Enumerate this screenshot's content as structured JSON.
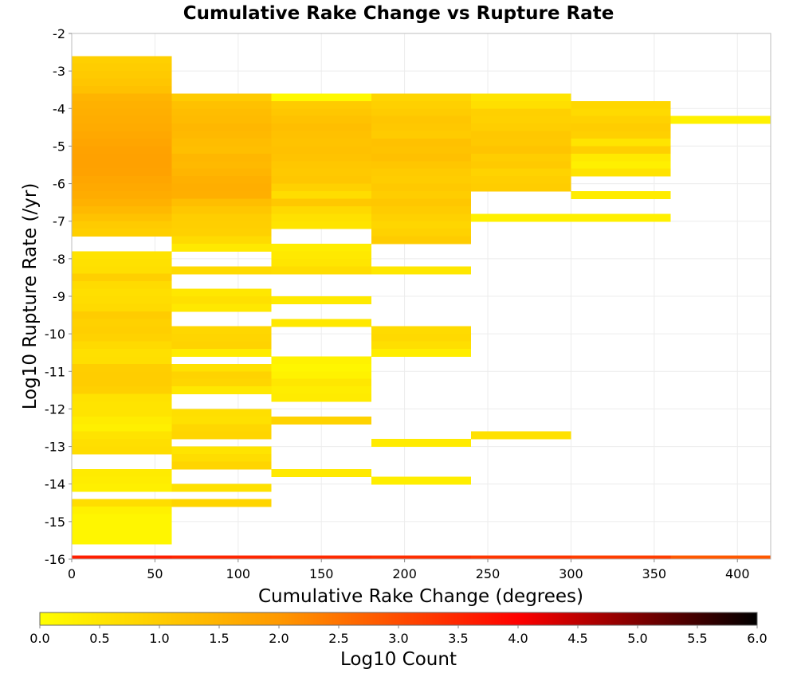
{
  "chart_data": {
    "type": "heatmap",
    "title": "Cumulative Rake Change vs Rupture Rate",
    "xlabel": "Cumulative Rake Change (degrees)",
    "ylabel": "Log10 Rupture Rate (/yr)",
    "xlim": [
      0,
      420
    ],
    "ylim": [
      -16,
      -2
    ],
    "x_ticks": [
      "0",
      "50",
      "100",
      "150",
      "200",
      "250",
      "300",
      "350",
      "400"
    ],
    "y_ticks": [
      "-2",
      "-3",
      "-4",
      "-5",
      "-6",
      "-7",
      "-8",
      "-9",
      "-10",
      "-11",
      "-12",
      "-13",
      "-14",
      "-15",
      "-16"
    ],
    "grid": true,
    "colorbar": {
      "label": "Log10 Count",
      "range": [
        0,
        6
      ],
      "ticks": [
        "0.0",
        "0.5",
        "1.0",
        "1.5",
        "2.0",
        "2.5",
        "3.0",
        "3.5",
        "4.0",
        "4.5",
        "5.0",
        "5.5",
        "6.0"
      ],
      "colormap": [
        "#ffff00",
        "#ff9900",
        "#ff0000",
        "#000000"
      ]
    },
    "x_bin_width": 60,
    "y_bin_height": 0.2,
    "columns": [
      {
        "x_start": 0,
        "cells": [
          [
            -2.7,
            0.92
          ],
          [
            -2.9,
            0.98
          ],
          [
            -3.1,
            1.04
          ],
          [
            -3.3,
            1.12
          ],
          [
            -3.5,
            1.22
          ],
          [
            -3.7,
            1.48
          ],
          [
            -3.9,
            1.52
          ],
          [
            -4.1,
            1.56
          ],
          [
            -4.3,
            1.6
          ],
          [
            -4.5,
            1.65
          ],
          [
            -4.7,
            1.7
          ],
          [
            -4.9,
            1.76
          ],
          [
            -5.1,
            1.82
          ],
          [
            -5.3,
            1.85
          ],
          [
            -5.5,
            1.85
          ],
          [
            -5.7,
            1.82
          ],
          [
            -5.9,
            1.74
          ],
          [
            -6.1,
            1.68
          ],
          [
            -6.3,
            1.62
          ],
          [
            -6.5,
            1.52
          ],
          [
            -6.7,
            1.38
          ],
          [
            -6.9,
            1.2
          ],
          [
            -7.1,
            1.02
          ],
          [
            -7.3,
            0.95
          ],
          [
            -7.9,
            0.55
          ],
          [
            -8.1,
            0.58
          ],
          [
            -8.3,
            0.62
          ],
          [
            -8.5,
            0.95
          ],
          [
            -8.7,
            0.7
          ],
          [
            -8.9,
            0.62
          ],
          [
            -9.1,
            0.66
          ],
          [
            -9.3,
            0.72
          ],
          [
            -9.5,
            1.0
          ],
          [
            -9.7,
            0.9
          ],
          [
            -9.9,
            0.95
          ],
          [
            -10.1,
            0.88
          ],
          [
            -10.3,
            0.72
          ],
          [
            -10.5,
            0.6
          ],
          [
            -10.7,
            0.62
          ],
          [
            -10.9,
            0.96
          ],
          [
            -11.1,
            0.98
          ],
          [
            -11.3,
            0.98
          ],
          [
            -11.5,
            0.92
          ],
          [
            -11.7,
            0.56
          ],
          [
            -11.9,
            0.52
          ],
          [
            -12.1,
            0.52
          ],
          [
            -12.3,
            0.38
          ],
          [
            -12.5,
            0.3
          ],
          [
            -12.7,
            0.55
          ],
          [
            -12.9,
            0.62
          ],
          [
            -13.1,
            0.66
          ],
          [
            -13.7,
            0.4
          ],
          [
            -13.9,
            0.36
          ],
          [
            -14.1,
            0.3
          ],
          [
            -14.5,
            0.66
          ],
          [
            -14.7,
            0.28
          ],
          [
            -14.9,
            0.18
          ],
          [
            -15.1,
            0.18
          ],
          [
            -15.3,
            0.18
          ],
          [
            -15.5,
            0.18
          ]
        ]
      },
      {
        "x_start": 60,
        "cells": [
          [
            -3.7,
            1.02
          ],
          [
            -3.9,
            1.22
          ],
          [
            -4.1,
            1.3
          ],
          [
            -4.3,
            1.34
          ],
          [
            -4.5,
            1.42
          ],
          [
            -4.7,
            1.38
          ],
          [
            -4.9,
            1.3
          ],
          [
            -5.1,
            1.26
          ],
          [
            -5.3,
            1.42
          ],
          [
            -5.5,
            1.38
          ],
          [
            -5.7,
            1.46
          ],
          [
            -5.9,
            1.54
          ],
          [
            -6.1,
            1.58
          ],
          [
            -6.3,
            1.56
          ],
          [
            -6.5,
            1.28
          ],
          [
            -6.7,
            1.1
          ],
          [
            -6.9,
            0.96
          ],
          [
            -7.1,
            0.94
          ],
          [
            -7.3,
            0.9
          ],
          [
            -7.5,
            0.7
          ],
          [
            -7.7,
            0.44
          ],
          [
            -8.3,
            0.72
          ],
          [
            -8.9,
            0.48
          ],
          [
            -9.1,
            0.6
          ],
          [
            -9.3,
            0.46
          ],
          [
            -9.9,
            0.78
          ],
          [
            -10.1,
            0.82
          ],
          [
            -10.3,
            0.86
          ],
          [
            -10.5,
            0.4
          ],
          [
            -10.9,
            0.58
          ],
          [
            -11.1,
            0.86
          ],
          [
            -11.3,
            0.8
          ],
          [
            -11.5,
            0.46
          ],
          [
            -12.1,
            0.62
          ],
          [
            -12.3,
            0.58
          ],
          [
            -12.5,
            0.78
          ],
          [
            -12.7,
            0.82
          ],
          [
            -13.1,
            0.52
          ],
          [
            -13.3,
            0.66
          ],
          [
            -13.5,
            0.82
          ],
          [
            -14.1,
            0.58
          ],
          [
            -14.5,
            0.82
          ]
        ]
      },
      {
        "x_start": 120,
        "cells": [
          [
            -3.7,
            0.12
          ],
          [
            -3.9,
            1.02
          ],
          [
            -4.1,
            1.1
          ],
          [
            -4.3,
            1.2
          ],
          [
            -4.5,
            1.28
          ],
          [
            -4.7,
            1.22
          ],
          [
            -4.9,
            1.18
          ],
          [
            -5.1,
            1.22
          ],
          [
            -5.3,
            1.18
          ],
          [
            -5.5,
            1.1
          ],
          [
            -5.7,
            1.06
          ],
          [
            -5.9,
            1.1
          ],
          [
            -6.1,
            0.9
          ],
          [
            -6.3,
            0.66
          ],
          [
            -6.5,
            1.08
          ],
          [
            -6.7,
            0.74
          ],
          [
            -6.9,
            0.58
          ],
          [
            -7.1,
            0.52
          ],
          [
            -7.7,
            0.36
          ],
          [
            -7.9,
            0.44
          ],
          [
            -8.1,
            0.5
          ],
          [
            -8.3,
            0.66
          ],
          [
            -9.1,
            0.42
          ],
          [
            -9.7,
            0.46
          ],
          [
            -10.7,
            0.26
          ],
          [
            -10.9,
            0.18
          ],
          [
            -11.1,
            0.26
          ],
          [
            -11.3,
            0.48
          ],
          [
            -11.5,
            0.36
          ],
          [
            -11.7,
            0.4
          ],
          [
            -12.3,
            0.86
          ],
          [
            -13.7,
            0.44
          ]
        ]
      },
      {
        "x_start": 180,
        "cells": [
          [
            -3.7,
            0.82
          ],
          [
            -3.9,
            0.92
          ],
          [
            -4.1,
            1.0
          ],
          [
            -4.3,
            1.12
          ],
          [
            -4.5,
            1.08
          ],
          [
            -4.7,
            1.02
          ],
          [
            -4.9,
            1.22
          ],
          [
            -5.1,
            1.18
          ],
          [
            -5.3,
            1.24
          ],
          [
            -5.5,
            1.12
          ],
          [
            -5.7,
            1.02
          ],
          [
            -5.9,
            0.98
          ],
          [
            -6.1,
            1.06
          ],
          [
            -6.3,
            0.98
          ],
          [
            -6.5,
            1.1
          ],
          [
            -6.7,
            1.0
          ],
          [
            -6.9,
            0.9
          ],
          [
            -7.1,
            0.8
          ],
          [
            -7.3,
            0.88
          ],
          [
            -7.5,
            1.0
          ],
          [
            -8.3,
            0.48
          ],
          [
            -9.9,
            0.7
          ],
          [
            -10.1,
            0.74
          ],
          [
            -10.3,
            0.62
          ],
          [
            -10.5,
            0.36
          ],
          [
            -12.9,
            0.4
          ],
          [
            -13.9,
            0.34
          ]
        ]
      },
      {
        "x_start": 240,
        "cells": [
          [
            -3.7,
            0.52
          ],
          [
            -3.9,
            0.62
          ],
          [
            -4.1,
            0.92
          ],
          [
            -4.3,
            0.9
          ],
          [
            -4.5,
            0.96
          ],
          [
            -4.7,
            1.08
          ],
          [
            -4.9,
            1.06
          ],
          [
            -5.1,
            1.16
          ],
          [
            -5.3,
            0.98
          ],
          [
            -5.5,
            1.04
          ],
          [
            -5.7,
            0.86
          ],
          [
            -5.9,
            0.94
          ],
          [
            -6.1,
            0.98
          ],
          [
            -6.9,
            0.3
          ],
          [
            -12.7,
            0.58
          ]
        ]
      },
      {
        "x_start": 300,
        "cells": [
          [
            -3.9,
            0.78
          ],
          [
            -4.1,
            0.72
          ],
          [
            -4.3,
            0.88
          ],
          [
            -4.5,
            0.98
          ],
          [
            -4.7,
            0.92
          ],
          [
            -4.9,
            0.52
          ],
          [
            -5.1,
            0.94
          ],
          [
            -5.3,
            0.42
          ],
          [
            -5.5,
            0.3
          ],
          [
            -5.7,
            0.54
          ],
          [
            -6.3,
            0.38
          ],
          [
            -6.9,
            0.3
          ]
        ]
      },
      {
        "x_start": 360,
        "cells": [
          [
            -4.3,
            0.28
          ]
        ]
      }
    ],
    "bottom_row": {
      "y_bottom": -16,
      "y_top": -15.9,
      "columns": [
        {
          "x_start": 0,
          "value": 3.6
        },
        {
          "x_start": 60,
          "value": 3.5
        },
        {
          "x_start": 120,
          "value": 3.45
        },
        {
          "x_start": 180,
          "value": 3.4
        },
        {
          "x_start": 240,
          "value": 3.3
        },
        {
          "x_start": 300,
          "value": 3.2
        },
        {
          "x_start": 360,
          "value": 2.85
        }
      ]
    }
  }
}
